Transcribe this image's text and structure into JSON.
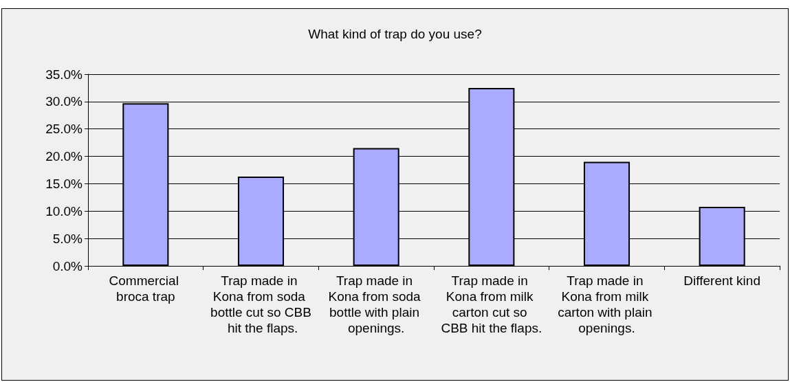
{
  "chart_data": {
    "type": "bar",
    "title": "What kind of trap do you use?",
    "categories": [
      "Commercial broca trap",
      "Trap made in Kona from soda bottle cut so CBB hit the flaps.",
      "Trap made in Kona from soda bottle with plain openings.",
      "Trap made in Kona from milk carton cut so CBB hit the flaps.",
      "Trap made in Kona from milk carton with plain openings.",
      "Different kind"
    ],
    "values": [
      29.7,
      16.3,
      21.5,
      32.5,
      19.0,
      10.8
    ],
    "color": "#aaaaff",
    "ylim": [
      0,
      35
    ],
    "yticks": [
      {
        "value": 0,
        "label": "0.0%"
      },
      {
        "value": 5,
        "label": "5.0%"
      },
      {
        "value": 10,
        "label": "10.0%"
      },
      {
        "value": 15,
        "label": "15.0%"
      },
      {
        "value": 20,
        "label": "20.0%"
      },
      {
        "value": 25,
        "label": "25.0%"
      },
      {
        "value": 30,
        "label": "30.0%"
      },
      {
        "value": 35,
        "label": "35.0%"
      }
    ],
    "grid": "y"
  }
}
